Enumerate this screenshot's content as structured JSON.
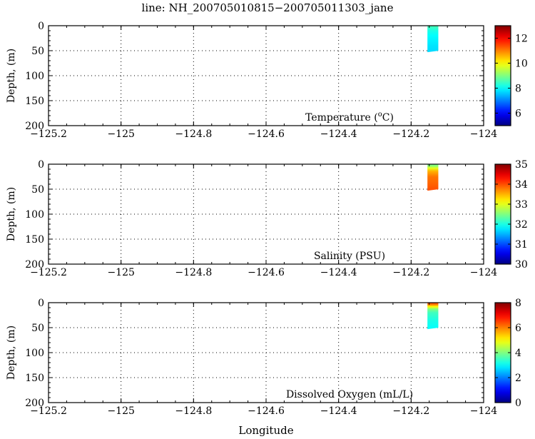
{
  "figure": {
    "title": "line: NH_200705010815−200705011303_jane",
    "xlabel": "Longitude"
  },
  "chart_data": [
    {
      "type": "heatmap",
      "panel": "temperature",
      "ylabel": "Depth, (m)",
      "annotation": "Temperature",
      "annotation_unit_pre": "(",
      "annotation_unit_sup": "o",
      "annotation_unit_post": "C)",
      "xlim": [
        -125.2,
        -124.0
      ],
      "ylim": [
        200,
        0
      ],
      "y_reversed": true,
      "xticks": [
        -125.2,
        -125.0,
        -124.8,
        -124.6,
        -124.4,
        -124.2,
        -124.0
      ],
      "xtick_labels": [
        "−125.2",
        "−125",
        "−124.8",
        "−124.6",
        "−124.4",
        "−124.2",
        "−124"
      ],
      "yticks": [
        0,
        50,
        100,
        150,
        200
      ],
      "ytick_labels": [
        "0",
        "50",
        "100",
        "150",
        "200"
      ],
      "grid": true,
      "colormap": "jet",
      "clim": [
        5,
        13
      ],
      "colorbar_ticks": [
        6,
        8,
        10,
        12
      ],
      "colorbar_tick_labels": [
        "6",
        "8",
        "10",
        "12"
      ],
      "data_region": {
        "lon": [
          -124.155,
          -124.125
        ],
        "depth": [
          0,
          53
        ]
      },
      "profile": [
        {
          "depth": 0,
          "value": 8.6
        },
        {
          "depth": 5,
          "value": 8.4
        },
        {
          "depth": 10,
          "value": 8.2
        },
        {
          "depth": 20,
          "value": 8.0
        },
        {
          "depth": 30,
          "value": 7.9
        },
        {
          "depth": 40,
          "value": 7.8
        },
        {
          "depth": 53,
          "value": 7.7
        }
      ]
    },
    {
      "type": "heatmap",
      "panel": "salinity",
      "ylabel": "Depth, (m)",
      "annotation": "Salinity (PSU)",
      "xlim": [
        -125.2,
        -124.0
      ],
      "ylim": [
        200,
        0
      ],
      "y_reversed": true,
      "xticks": [
        -125.2,
        -125.0,
        -124.8,
        -124.6,
        -124.4,
        -124.2,
        -124.0
      ],
      "xtick_labels": [
        "−125.2",
        "−125",
        "−124.8",
        "−124.6",
        "−124.4",
        "−124.2",
        "−124"
      ],
      "yticks": [
        0,
        50,
        100,
        150,
        200
      ],
      "ytick_labels": [
        "0",
        "50",
        "100",
        "150",
        "200"
      ],
      "grid": true,
      "colormap": "jet",
      "clim": [
        30,
        35
      ],
      "colorbar_ticks": [
        30,
        31,
        32,
        33,
        34,
        35
      ],
      "colorbar_tick_labels": [
        "30",
        "31",
        "32",
        "33",
        "34",
        "35"
      ],
      "data_region": {
        "lon": [
          -124.155,
          -124.125
        ],
        "depth": [
          0,
          53
        ]
      },
      "profile": [
        {
          "depth": 0,
          "value": 32.4
        },
        {
          "depth": 4,
          "value": 32.6
        },
        {
          "depth": 8,
          "value": 33.0
        },
        {
          "depth": 14,
          "value": 33.5
        },
        {
          "depth": 25,
          "value": 33.8
        },
        {
          "depth": 40,
          "value": 33.9
        },
        {
          "depth": 53,
          "value": 34.0
        }
      ]
    },
    {
      "type": "heatmap",
      "panel": "oxygen",
      "ylabel": "Depth, (m)",
      "annotation": "Dissolved Oxygen (mL/L)",
      "xlim": [
        -125.2,
        -124.0
      ],
      "ylim": [
        200,
        0
      ],
      "y_reversed": true,
      "xticks": [
        -125.2,
        -125.0,
        -124.8,
        -124.6,
        -124.4,
        -124.2,
        -124.0
      ],
      "xtick_labels": [
        "−125.2",
        "−125",
        "−124.8",
        "−124.6",
        "−124.4",
        "−124.2",
        "−124"
      ],
      "yticks": [
        0,
        50,
        100,
        150,
        200
      ],
      "ytick_labels": [
        "0",
        "50",
        "100",
        "150",
        "200"
      ],
      "grid": true,
      "colormap": "jet",
      "clim": [
        0,
        8
      ],
      "colorbar_ticks": [
        0,
        2,
        4,
        6,
        8
      ],
      "colorbar_tick_labels": [
        "0",
        "2",
        "4",
        "6",
        "8"
      ],
      "data_region": {
        "lon": [
          -124.155,
          -124.125
        ],
        "depth": [
          0,
          53
        ]
      },
      "profile": [
        {
          "depth": 0,
          "value": 6.5
        },
        {
          "depth": 4,
          "value": 6.0
        },
        {
          "depth": 8,
          "value": 5.0
        },
        {
          "depth": 13,
          "value": 4.0
        },
        {
          "depth": 20,
          "value": 3.5
        },
        {
          "depth": 35,
          "value": 3.2
        },
        {
          "depth": 53,
          "value": 3.0
        }
      ]
    }
  ]
}
